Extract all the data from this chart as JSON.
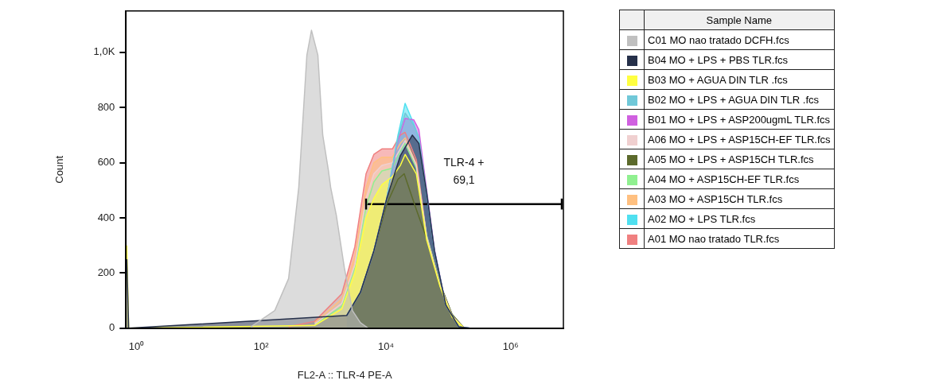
{
  "chart_data": {
    "type": "area",
    "xlabel": "FL2-A :: TLR-4 PE-A",
    "ylabel": "Count",
    "legend_title": "Sample Name",
    "legend": "right",
    "marker": "none",
    "grid": false,
    "log": "x",
    "xlim": [
      0.68,
      7000000
    ],
    "ylim": [
      0,
      1150
    ],
    "xticks": [
      {
        "value": 1,
        "label": "10⁰"
      },
      {
        "value": 100,
        "label": "10²"
      },
      {
        "value": 10000,
        "label": "10⁴"
      },
      {
        "value": 1000000,
        "label": "10⁶"
      }
    ],
    "yticks": [
      0,
      200,
      400,
      600,
      800,
      {
        "value": 1000,
        "label": "1,0K"
      }
    ],
    "series": [
      {
        "name": "C01 MO nao tratado DCFH.fcs",
        "color": "#c0c0c0",
        "x": [
          68,
          165,
          275,
          400,
          540,
          640,
          810,
          970,
          1200,
          1300,
          1600,
          2150,
          2900,
          3900,
          5200
        ],
        "values": [
          5,
          64,
          180,
          510,
          990,
          1080,
          990,
          700,
          570,
          510,
          410,
          220,
          64,
          20,
          0
        ]
      },
      {
        "name": "B04 MO + LPS + PBS TLR.fcs",
        "color": "#26304a",
        "x": [
          0.7,
          0.75,
          2350,
          3900,
          6400,
          10300,
          17000,
          26500,
          33700,
          45000,
          60000,
          91000,
          147000,
          222000
        ],
        "values": [
          250,
          0,
          46,
          130,
          280,
          470,
          625,
          700,
          670,
          490,
          280,
          85,
          5,
          0
        ]
      },
      {
        "name": "B03 MO + AGUA DIN TLR .fcs",
        "color": "#ffff40",
        "x": [
          0.7,
          0.75,
          720,
          1960,
          3170,
          4800,
          6400,
          8600,
          12700,
          17000,
          20300,
          30700,
          45000,
          74000,
          115000,
          180000
        ],
        "values": [
          300,
          0,
          10,
          70,
          200,
          400,
          470,
          520,
          550,
          590,
          630,
          560,
          320,
          150,
          40,
          0
        ]
      },
      {
        "name": "B02 MO + LPS + AGUA DIN TLR .fcs",
        "color": "#70c8d8",
        "x": [
          2350,
          3900,
          6400,
          10300,
          15600,
          20300,
          28000,
          33700,
          45000,
          60000,
          91000,
          147000,
          222000
        ],
        "values": [
          46,
          130,
          280,
          470,
          690,
          780,
          735,
          690,
          490,
          280,
          85,
          5,
          0
        ]
      },
      {
        "name": "B01 MO + LPS + ASP200ugmL TLR.fcs",
        "color": "#d060e0",
        "x": [
          2350,
          3900,
          6400,
          10300,
          15600,
          20300,
          28000,
          33700,
          45000,
          60000,
          91000,
          147000,
          222000
        ],
        "values": [
          46,
          130,
          280,
          470,
          680,
          760,
          755,
          720,
          500,
          285,
          85,
          5,
          0
        ]
      },
      {
        "name": "A06 MO + LPS + ASP15CH-EF TLR.fcs",
        "color": "#f0d0d0",
        "x": [
          720,
          1960,
          3170,
          4800,
          6400,
          8600,
          12700,
          17000,
          20300,
          30700,
          45000,
          74000,
          115000,
          180000
        ],
        "values": [
          15,
          90,
          230,
          470,
          560,
          590,
          600,
          650,
          680,
          590,
          330,
          155,
          45,
          0
        ]
      },
      {
        "name": "A05 MO + LPS + ASP15CH TLR.fcs",
        "color": "#5c6a2c",
        "x": [
          2350,
          3900,
          6400,
          10300,
          15600,
          19600,
          30700,
          45000,
          74000,
          115000,
          180000
        ],
        "values": [
          46,
          130,
          280,
          450,
          540,
          560,
          430,
          325,
          160,
          50,
          0
        ]
      },
      {
        "name": "A04 MO + ASP15CH-EF TLR.fcs",
        "color": "#90f090",
        "x": [
          720,
          1960,
          3170,
          4800,
          6400,
          8600,
          12700,
          17000,
          20300,
          30700,
          45000,
          74000,
          115000,
          180000
        ],
        "values": [
          12,
          80,
          220,
          440,
          530,
          570,
          580,
          640,
          670,
          580,
          335,
          160,
          50,
          0
        ]
      },
      {
        "name": "A03 MO + ASP15CH TLR.fcs",
        "color": "#ffc080",
        "x": [
          720,
          1960,
          3170,
          4800,
          6400,
          8600,
          12700,
          17000,
          20300,
          30700,
          45000,
          74000,
          115000,
          180000
        ],
        "values": [
          20,
          105,
          260,
          510,
          600,
          620,
          620,
          670,
          690,
          595,
          330,
          155,
          45,
          0
        ]
      },
      {
        "name": "A02 MO + LPS  TLR.fcs",
        "color": "#50e0f0",
        "x": [
          2350,
          3900,
          6400,
          10300,
          15600,
          20300,
          28000,
          33700,
          45000,
          60000,
          91000,
          147000,
          222000
        ],
        "values": [
          46,
          130,
          280,
          470,
          700,
          815,
          740,
          690,
          490,
          280,
          85,
          5,
          0
        ]
      },
      {
        "name": "A01 MO nao tratado TLR.fcs",
        "color": "#f08080",
        "x": [
          275,
          720,
          1960,
          3170,
          4800,
          6400,
          8600,
          12700,
          17000,
          20300,
          30700,
          45000,
          74000,
          115000,
          180000
        ],
        "values": [
          5,
          25,
          125,
          295,
          560,
          630,
          650,
          650,
          700,
          710,
          610,
          335,
          160,
          50,
          0
        ]
      },
      {
        "type": "line",
        "color": "#000000",
        "x": [
          4800,
          6600000
        ],
        "values": [
          450,
          450
        ],
        "errors": [
          20,
          20
        ]
      }
    ],
    "annotations": [
      "TLR-4 +",
      "69,1"
    ]
  }
}
